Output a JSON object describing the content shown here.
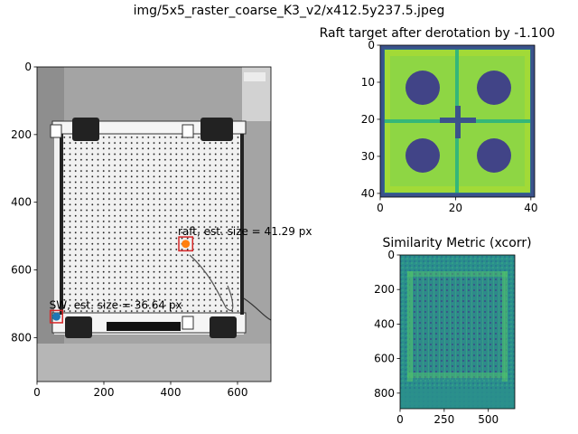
{
  "figure": {
    "suptitle": "img/5x5_raster_coarse_K3_v2/x412.5y237.5.jpeg"
  },
  "chart_data": [
    {
      "type": "image",
      "name": "raster-photo",
      "title": "",
      "xlim": [
        0,
        700
      ],
      "ylim": [
        930,
        0
      ],
      "xticks": [
        0,
        200,
        400,
        600
      ],
      "yticks": [
        0,
        200,
        400,
        600,
        800
      ],
      "colormap": "gray",
      "markers": [
        {
          "label": "raft, est. size = 41.29 px",
          "x": 445,
          "y": 523,
          "size_px": 41.29,
          "marker_color": "#ff7f0e",
          "box_color": "#d62728"
        },
        {
          "label": "SW, est. size = 36.64 px",
          "x": 58,
          "y": 738,
          "size_px": 36.64,
          "marker_color": "#1f77b4",
          "box_color": "#d62728"
        }
      ]
    },
    {
      "type": "heatmap",
      "name": "raft-target",
      "title": "Raft target after derotation by -1.100",
      "xlim": [
        0,
        41
      ],
      "ylim": [
        41,
        0
      ],
      "xticks": [
        0,
        20,
        40
      ],
      "yticks": [
        0,
        10,
        20,
        30,
        40
      ],
      "colormap": "viridis"
    },
    {
      "type": "heatmap",
      "name": "similarity-metric",
      "title": "Similarity Metric (xcorr)",
      "xlim": [
        0,
        650
      ],
      "ylim": [
        890,
        0
      ],
      "xticks": [
        0,
        250,
        500
      ],
      "yticks": [
        0,
        200,
        400,
        600,
        800
      ],
      "colormap": "viridis"
    }
  ]
}
